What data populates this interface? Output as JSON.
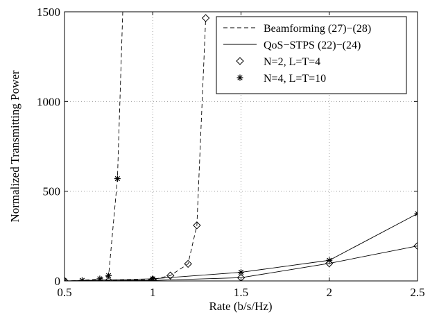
{
  "chart_data": {
    "type": "line",
    "title": "",
    "xlabel": "Rate (b/s/Hz)",
    "ylabel": "Normalized Transmitting Power",
    "xlim": [
      0.5,
      2.5
    ],
    "ylim": [
      0,
      1500
    ],
    "xticks": [
      0.5,
      1,
      1.5,
      2,
      2.5
    ],
    "xtick_labels": [
      "0.5",
      "1",
      "1.5",
      "2",
      "2.5"
    ],
    "yticks": [
      0,
      500,
      1000,
      1500
    ],
    "ytick_labels": [
      "0",
      "500",
      "1000",
      "1500"
    ],
    "grid": true,
    "legend_position": "top-right",
    "legend": [
      {
        "label": "Beamforming (27)−(28)",
        "line": "dashed",
        "marker": "none"
      },
      {
        "label": "QoS−STPS (22)−(24)",
        "line": "solid",
        "marker": "none"
      },
      {
        "label": "N=2, L=T=4",
        "line": "none",
        "marker": "diamond"
      },
      {
        "label": "N=4, L=T=10",
        "line": "none",
        "marker": "star"
      }
    ],
    "series": [
      {
        "method": "Beamforming",
        "config": "N=2, L=T=4",
        "line": "dashed",
        "marker": "diamond",
        "x": [
          0.5,
          0.75,
          1.0,
          1.1,
          1.2,
          1.25,
          1.3
        ],
        "y": [
          0,
          2,
          8,
          30,
          95,
          310,
          1465
        ]
      },
      {
        "method": "Beamforming",
        "config": "N=4, L=T=10",
        "line": "dashed",
        "marker": "star",
        "x": [
          0.5,
          0.6,
          0.7,
          0.75,
          0.8,
          0.83
        ],
        "y": [
          0,
          3,
          12,
          30,
          570,
          1500
        ]
      },
      {
        "method": "QoS-STPS",
        "config": "N=2, L=T=4",
        "line": "solid",
        "marker": "diamond",
        "x": [
          0.5,
          1.0,
          1.5,
          2.0,
          2.5
        ],
        "y": [
          0,
          3,
          18,
          98,
          195
        ]
      },
      {
        "method": "QoS-STPS",
        "config": "N=4, L=T=10",
        "line": "solid",
        "marker": "star",
        "x": [
          0.5,
          1.0,
          1.5,
          2.0,
          2.5
        ],
        "y": [
          0,
          12,
          48,
          115,
          375
        ]
      }
    ]
  }
}
